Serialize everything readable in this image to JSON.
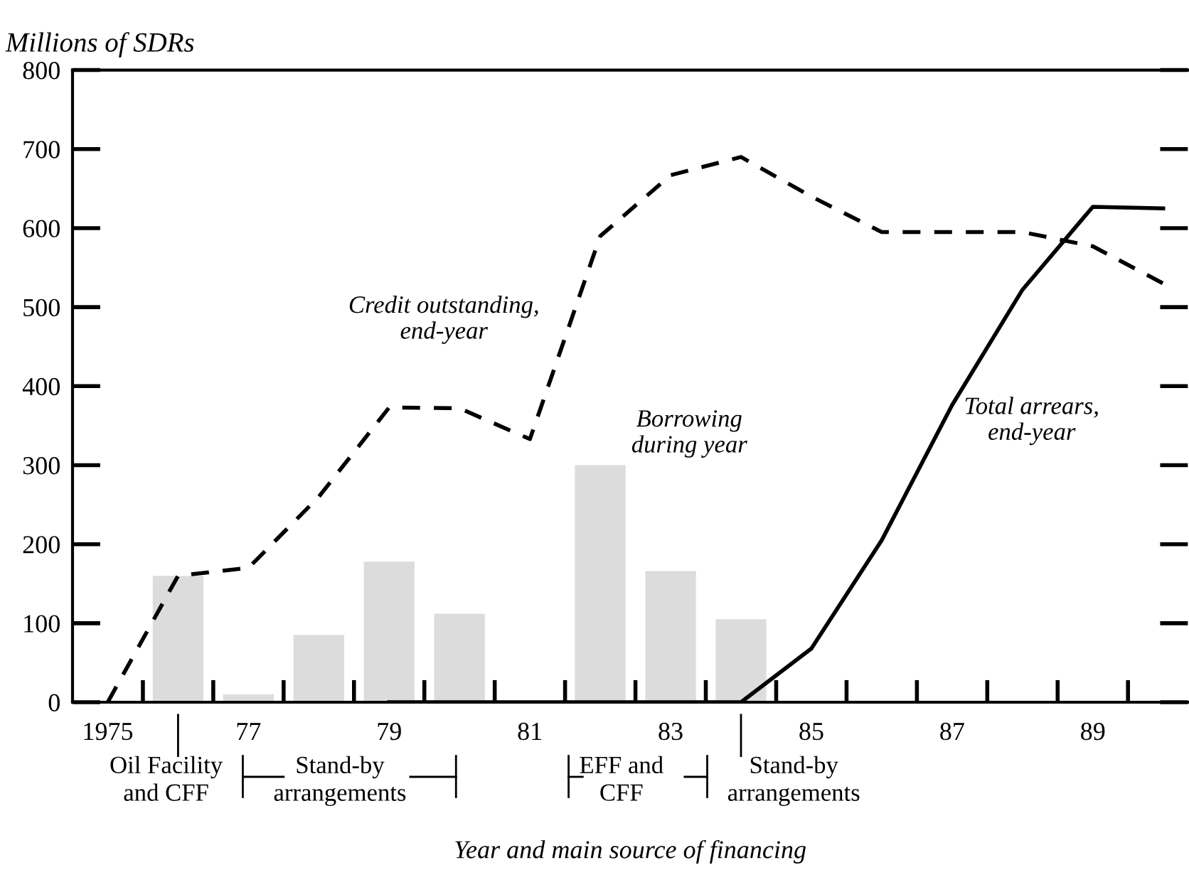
{
  "chart_data": {
    "type": "line",
    "ylabel": "Millions of SDRs",
    "xlabel": "Year and main source of financing",
    "xlim": [
      1974.5,
      1990.35
    ],
    "ylim": [
      0,
      800
    ],
    "xticks": [
      1975,
      {
        "value": 1975.5,
        "label": null
      },
      {
        "value": 1976.5,
        "label": null
      },
      {
        "value": 1977,
        "label": "77"
      },
      {
        "value": 1977.5,
        "label": null
      },
      {
        "value": 1978.5,
        "label": null
      },
      {
        "value": 1979,
        "label": "79"
      },
      {
        "value": 1979.5,
        "label": null
      },
      {
        "value": 1980.5,
        "label": null
      },
      {
        "value": 1981,
        "label": "81"
      },
      {
        "value": 1981.5,
        "label": null
      },
      {
        "value": 1982.5,
        "label": null
      },
      {
        "value": 1983,
        "label": "83"
      },
      {
        "value": 1983.5,
        "label": null
      },
      {
        "value": 1984.5,
        "label": null
      },
      {
        "value": 1985,
        "label": "85"
      },
      {
        "value": 1985.5,
        "label": null
      },
      {
        "value": 1986.5,
        "label": null
      },
      {
        "value": 1987,
        "label": "87"
      },
      {
        "value": 1987.5,
        "label": null
      },
      {
        "value": 1988.5,
        "label": null
      },
      {
        "value": 1989,
        "label": "89"
      },
      {
        "value": 1989.5,
        "label": null
      }
    ],
    "yticks": [
      0,
      100,
      200,
      300,
      400,
      500,
      600,
      700,
      800
    ],
    "grid": false,
    "series": [
      {
        "type": "bar",
        "color": "#dcdcdc",
        "x": [
          1976,
          1977,
          1978,
          1979,
          1980,
          1981,
          1982,
          1983,
          1984
        ],
        "values": [
          160,
          10,
          85,
          178,
          112,
          null,
          300,
          166,
          105
        ]
      },
      {
        "color": "#000000",
        "line_style": "dashed",
        "x": [
          1975,
          1976,
          1977,
          1978,
          1979,
          1980,
          1981,
          1982,
          1983,
          1984,
          1985,
          1986,
          1987,
          1988,
          1989,
          1990
        ],
        "values": [
          0,
          160,
          170,
          260,
          373,
          372,
          333,
          590,
          667,
          690,
          640,
          595,
          595,
          595,
          577,
          530
        ]
      },
      {
        "color": "#000000",
        "line_style": "solid",
        "x": [
          1979,
          1980,
          1981,
          1982,
          1983,
          1984,
          1985,
          1986,
          1987,
          1988,
          1989,
          1990
        ],
        "values": [
          0,
          0,
          0,
          0,
          0,
          0,
          68,
          205,
          376,
          522,
          627,
          625
        ]
      }
    ],
    "annotations": [
      "Credit outstanding,\nend-year",
      "Borrowing\nduring year",
      "Total arrears,\nend-year",
      "Oil Facility\nand CFF",
      "Stand-by\narrangements",
      "EFF and\nCFF",
      "Stand-by\narrangements"
    ]
  }
}
